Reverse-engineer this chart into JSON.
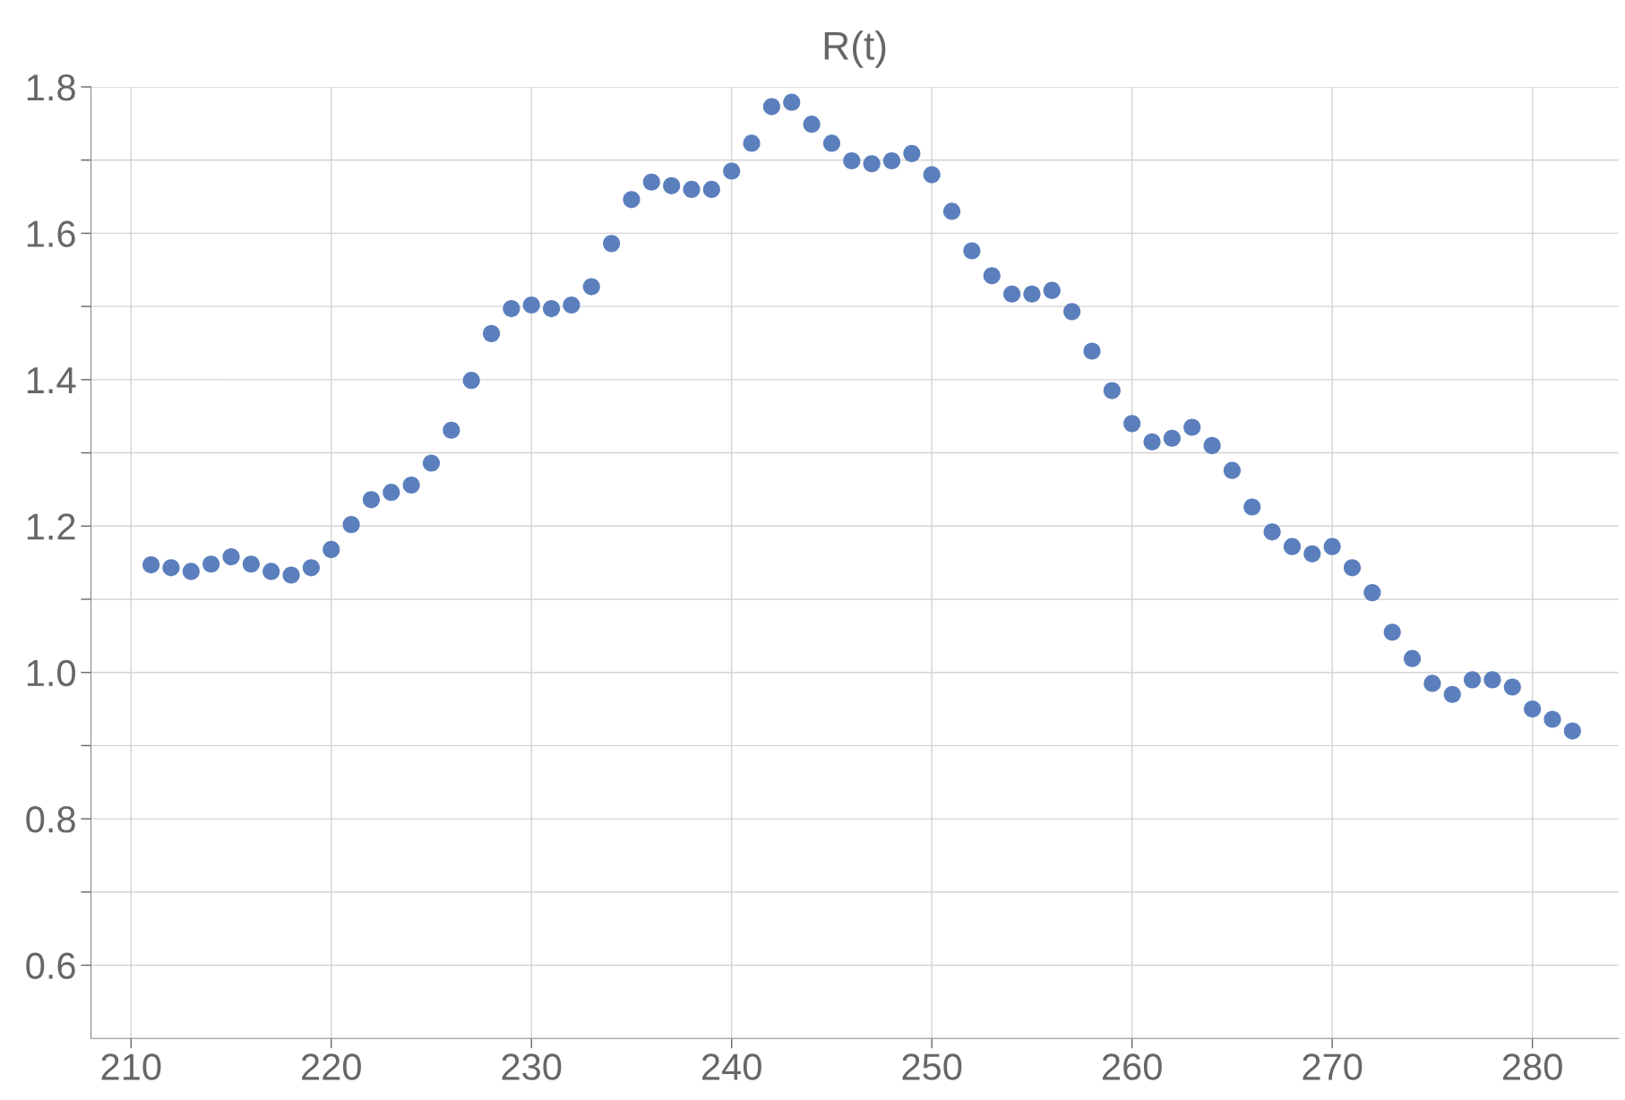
{
  "chart_data": {
    "type": "scatter",
    "title": "R(t)",
    "x": [
      211,
      212,
      213,
      214,
      215,
      216,
      217,
      218,
      219,
      220,
      221,
      222,
      223,
      224,
      225,
      226,
      227,
      228,
      229,
      230,
      231,
      232,
      233,
      234,
      235,
      236,
      237,
      238,
      239,
      240,
      241,
      242,
      243,
      244,
      245,
      246,
      247,
      248,
      249,
      250,
      251,
      252,
      253,
      254,
      255,
      256,
      257,
      258,
      259,
      260,
      261,
      262,
      263,
      264,
      265,
      266,
      267,
      268,
      269,
      270,
      271,
      272,
      273,
      274,
      275,
      276,
      277,
      278,
      279,
      280,
      281,
      282
    ],
    "series": [
      {
        "color": "#5b7fbd",
        "values": [
          1.147,
          1.143,
          1.138,
          1.148,
          1.158,
          1.148,
          1.138,
          1.133,
          1.143,
          1.168,
          1.202,
          1.236,
          1.246,
          1.256,
          1.286,
          1.331,
          1.399,
          1.463,
          1.497,
          1.502,
          1.497,
          1.502,
          1.527,
          1.586,
          1.646,
          1.67,
          1.665,
          1.66,
          1.66,
          1.685,
          1.723,
          1.773,
          1.779,
          1.749,
          1.723,
          1.699,
          1.695,
          1.699,
          1.709,
          1.68,
          1.63,
          1.576,
          1.542,
          1.517,
          1.517,
          1.522,
          1.493,
          1.439,
          1.385,
          1.34,
          1.315,
          1.32,
          1.335,
          1.31,
          1.276,
          1.226,
          1.192,
          1.172,
          1.162,
          1.172,
          1.143,
          1.109,
          1.055,
          1.019,
          0.985,
          0.97,
          0.99,
          0.99,
          0.98,
          0.95,
          0.936,
          0.92
        ]
      }
    ],
    "xlim": [
      208.0,
      284.3
    ],
    "ylim": [
      0.5,
      1.8
    ],
    "xticks": [
      210,
      220,
      230,
      240,
      250,
      260,
      270,
      280
    ],
    "yticks": [
      {
        "value": 0.6,
        "label": "0.6"
      },
      {
        "value": 0.7,
        "label": null
      },
      {
        "value": 0.8,
        "label": "0.8"
      },
      {
        "value": 0.9,
        "label": null
      },
      {
        "value": 1.0,
        "label": "1.0"
      },
      {
        "value": 1.1,
        "label": null
      },
      {
        "value": 1.2,
        "label": "1.2"
      },
      {
        "value": 1.3,
        "label": null
      },
      {
        "value": 1.4,
        "label": "1.4"
      },
      {
        "value": 1.5,
        "label": null
      },
      {
        "value": 1.6,
        "label": "1.6"
      },
      {
        "value": 1.7,
        "label": null
      },
      {
        "value": 1.8,
        "label": "1.8"
      }
    ],
    "grid": true,
    "marker": "circle"
  }
}
